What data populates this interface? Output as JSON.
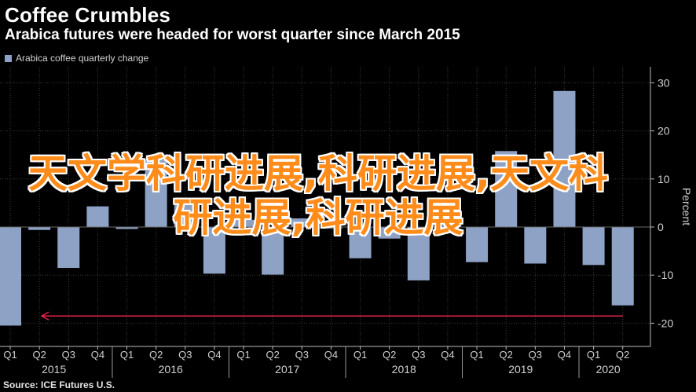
{
  "header": {
    "title": "Coffee Crumbles",
    "subtitle": "Arabica futures were headed for worst quarter since March 2015"
  },
  "legend": {
    "label": "Arabica coffee quarterly change"
  },
  "source": "Source: ICE Futures U.S.",
  "watermark": "天文学科研进展,科研进展,天文科研进展,科研进展",
  "colors": {
    "bar": "#8ea2c6",
    "background": "#000000",
    "grid": "#3c3c3c",
    "annotation_arrow": "#e8214a"
  },
  "chart_data": {
    "type": "bar",
    "categories": [
      "Q1",
      "Q2",
      "Q3",
      "Q4",
      "Q1",
      "Q2",
      "Q3",
      "Q4",
      "Q1",
      "Q2",
      "Q3",
      "Q4",
      "Q1",
      "Q2",
      "Q3",
      "Q4",
      "Q1",
      "Q2",
      "Q3",
      "Q4",
      "Q1",
      "Q2"
    ],
    "years": [
      {
        "label": "2015",
        "start": 0,
        "end": 3
      },
      {
        "label": "2016",
        "start": 4,
        "end": 7
      },
      {
        "label": "2017",
        "start": 8,
        "end": 11
      },
      {
        "label": "2018",
        "start": 12,
        "end": 15
      },
      {
        "label": "2019",
        "start": 16,
        "end": 19
      },
      {
        "label": "2020",
        "start": 20,
        "end": 21
      }
    ],
    "series": [
      {
        "name": "Arabica coffee quarterly change",
        "values": [
          -20.5,
          -0.6,
          -8.5,
          4.3,
          -0.4,
          14.0,
          5.5,
          -9.7,
          1.5,
          -9.9,
          1.8,
          -0.3,
          -6.5,
          -2.4,
          -11.1,
          0.4,
          -7.3,
          15.8,
          -7.6,
          28.3,
          -7.9,
          -16.3
        ]
      }
    ],
    "ylabel": "Percent",
    "ylim": [
      -24,
      32
    ],
    "yticks": [
      -20,
      -10,
      0,
      10,
      20,
      30
    ],
    "grid": true,
    "legend_position": "top-left",
    "annotation": {
      "type": "arrow",
      "from_category": 21,
      "to_category": 0,
      "y": -18.5
    }
  }
}
